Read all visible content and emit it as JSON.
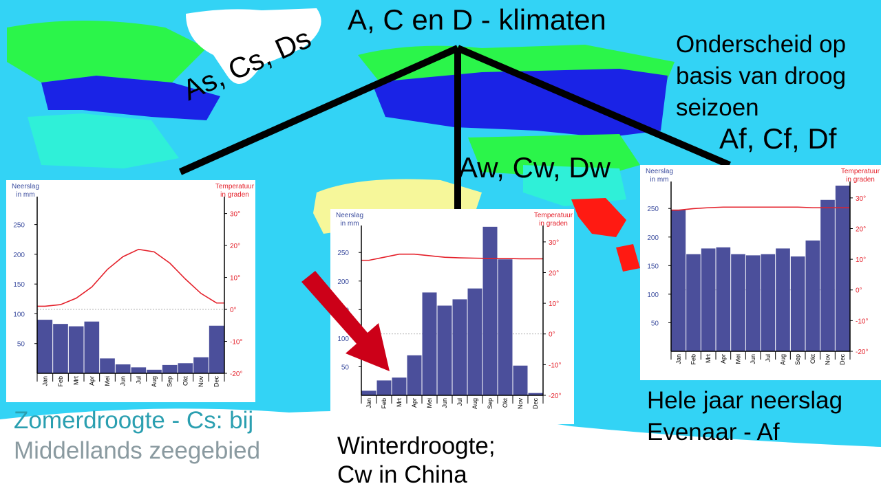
{
  "labels": {
    "title": "A, C en D - klimaten",
    "dry_season_note": [
      "Onderscheid op",
      "basis van droog",
      "seizoen"
    ],
    "group_s": "As, Cs, Ds",
    "group_w": "Aw, Cw, Dw",
    "group_f": "Af, Cf, Df",
    "caption_left": [
      "Zomerdroogte - Cs: bij",
      "Middellands zeegebied"
    ],
    "caption_middle": [
      "Winterdroogte;",
      "Cw in China"
    ],
    "caption_right": [
      "Hele jaar neerslag",
      "Evenaar - Af"
    ]
  },
  "colors": {
    "sea": "#33d3f5",
    "precip_bar": "#4b4f9b",
    "temperature_line": "#e4202a",
    "precip_axis_text": "#3b4c9e",
    "temp_axis_text": "#e4202a",
    "arrow": "#cc0018",
    "caption_left_text": "#2a9fb0"
  },
  "chart_data": [
    {
      "type": "bar",
      "panel": "left",
      "categories": [
        "Jan",
        "Feb",
        "Mrt",
        "Apr",
        "Mei",
        "Jun",
        "Jul",
        "Aug",
        "Sep",
        "Okt",
        "Nov",
        "Dec"
      ],
      "series": [
        {
          "values": [
            90,
            83,
            79,
            87,
            25,
            15,
            10,
            6,
            14,
            17,
            27,
            80
          ]
        },
        {
          "values": [
            1,
            1.5,
            3.5,
            7,
            12.5,
            16.5,
            18.8,
            18,
            14.5,
            9.5,
            5,
            2
          ]
        }
      ],
      "y_left_label": [
        "Neerslag",
        "in mm"
      ],
      "y_right_label": [
        "Temperatuur",
        "in graden"
      ],
      "y_left_ticks": [
        "250",
        "200",
        "150",
        "100",
        "50"
      ],
      "y_right_ticks": [
        "30°",
        "20°",
        "10°",
        "0°",
        "-10°",
        "-20°"
      ],
      "ylim_precip": [
        0,
        290
      ],
      "ylim_temp": [
        -20,
        34
      ]
    },
    {
      "type": "bar",
      "panel": "middle",
      "categories": [
        "Jan",
        "Feb",
        "Mrt",
        "Apr",
        "Mei",
        "Jun",
        "Jul",
        "Aug",
        "Sep",
        "Okt",
        "Nov",
        "Dec"
      ],
      "series": [
        {
          "values": [
            8,
            26,
            31,
            70,
            180,
            157,
            168,
            187,
            295,
            238,
            52,
            4
          ]
        },
        {
          "values": [
            24,
            25,
            26,
            26,
            25.5,
            25,
            24.8,
            24.7,
            24.6,
            24.6,
            24.5,
            24.5
          ]
        }
      ],
      "y_left_label": [
        "Neerslag",
        "in mm"
      ],
      "y_right_label": [
        "Temperatuur",
        "in graden"
      ],
      "y_left_ticks": [
        "250",
        "200",
        "150",
        "100",
        "50"
      ],
      "y_right_ticks": [
        "30°",
        "20°",
        "10°",
        "0°",
        "-10°",
        "-20°"
      ],
      "ylim_precip": [
        0,
        290
      ],
      "ylim_temp": [
        -20,
        34
      ]
    },
    {
      "type": "bar",
      "panel": "right",
      "categories": [
        "Jan",
        "Feb",
        "Mrt",
        "Apr",
        "Mei",
        "Jun",
        "Jul",
        "Aug",
        "Sep",
        "Okt",
        "Nov",
        "Dec"
      ],
      "series": [
        {
          "values": [
            248,
            170,
            180,
            182,
            170,
            168,
            170,
            180,
            166,
            194,
            265,
            290
          ]
        },
        {
          "values": [
            26,
            26.5,
            26.8,
            27,
            27,
            27,
            27,
            27,
            27,
            26.8,
            26.8,
            26.8
          ]
        }
      ],
      "y_left_label": [
        "Neerslag",
        "in mm"
      ],
      "y_right_label": [
        "Temperatuur",
        "in graden"
      ],
      "y_left_ticks": [
        "250",
        "200",
        "150",
        "100",
        "50"
      ],
      "y_right_ticks": [
        "30°",
        "20°",
        "10°",
        "0°",
        "-10°",
        "-20°"
      ],
      "ylim_precip": [
        0,
        290
      ],
      "ylim_temp": [
        -20,
        34
      ]
    }
  ]
}
